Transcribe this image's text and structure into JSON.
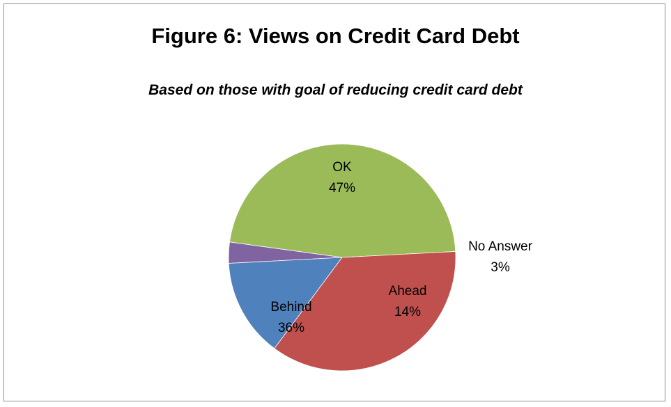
{
  "chart_data": {
    "type": "pie",
    "title": "Figure 6: Views on Credit Card Debt",
    "subtitle": "Based on those with goal of reducing credit card debt",
    "slices": [
      {
        "label": "OK",
        "value": 47,
        "value_label": "47%",
        "color": "#9bbb59"
      },
      {
        "label": "No Answer",
        "value": 3,
        "value_label": "3%",
        "color": "#8064a2"
      },
      {
        "label": "Ahead",
        "value": 14,
        "value_label": "14%",
        "color": "#4f81bd"
      },
      {
        "label": "Behind",
        "value": 36,
        "value_label": "36%",
        "color": "#c0504d"
      }
    ],
    "legend": "none"
  }
}
